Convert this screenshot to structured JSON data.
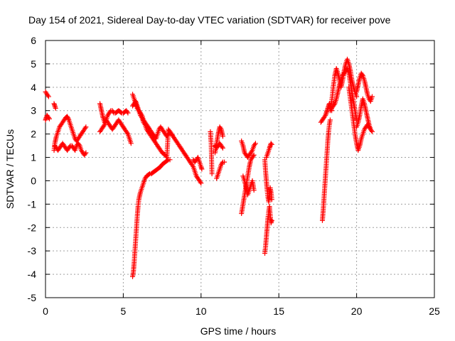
{
  "chart_data": {
    "type": "scatter",
    "title": "Day 154 of 2021, Sidereal Day-to-day VTEC variation (SDTVAR) for receiver pove",
    "xlabel": "GPS time / hours",
    "ylabel": "SDTVAR / TECUs",
    "xlim": [
      0,
      25
    ],
    "ylim": [
      -5,
      6
    ],
    "xticks": [
      0,
      5,
      10,
      15,
      20,
      25
    ],
    "yticks": [
      -5,
      -4,
      -3,
      -2,
      -1,
      0,
      1,
      2,
      3,
      4,
      5,
      6
    ],
    "xtick_labels": [
      "0",
      "5",
      "10",
      "15",
      "20",
      "25"
    ],
    "ytick_labels": [
      "-5",
      "-4",
      "-3",
      "-2",
      "-1",
      "0",
      "1",
      "2",
      "3",
      "4",
      "5",
      "6"
    ],
    "grid": true,
    "marker": "+",
    "marker_color": "#ff0000",
    "series": [
      {
        "name": "SDTVAR",
        "segments": [
          {
            "x": [
              0.0,
              0.05,
              0.1,
              0.15,
              0.2
            ],
            "y": [
              3.8,
              3.75,
              3.7,
              3.65,
              3.6
            ]
          },
          {
            "x": [
              0.0,
              0.05,
              0.1,
              0.15,
              0.2,
              0.25
            ],
            "y": [
              2.6,
              2.7,
              2.8,
              2.75,
              2.7,
              2.65
            ]
          },
          {
            "x": [
              0.55,
              0.6,
              0.65
            ],
            "y": [
              3.3,
              3.2,
              3.1
            ]
          },
          {
            "x": [
              0.55,
              0.6,
              0.7,
              0.8,
              0.9,
              1.0,
              1.1,
              1.2,
              1.3,
              1.4,
              1.5,
              1.6,
              1.7,
              1.8,
              1.9,
              2.0,
              2.1,
              2.2,
              2.3,
              2.4,
              2.5,
              2.6
            ],
            "y": [
              1.3,
              1.6,
              1.9,
              2.1,
              2.3,
              2.4,
              2.5,
              2.6,
              2.7,
              2.75,
              2.6,
              2.4,
              2.2,
              2.0,
              1.8,
              1.7,
              1.8,
              1.9,
              2.0,
              2.1,
              2.2,
              2.3
            ]
          },
          {
            "x": [
              0.6,
              0.7,
              0.8,
              0.9,
              1.0,
              1.1,
              1.2,
              1.3,
              1.4,
              1.5,
              1.6,
              1.7,
              1.8,
              1.9,
              2.0,
              2.1,
              2.2,
              2.3,
              2.4,
              2.5,
              2.6
            ],
            "y": [
              1.5,
              1.4,
              1.3,
              1.4,
              1.5,
              1.6,
              1.5,
              1.4,
              1.3,
              1.4,
              1.5,
              1.5,
              1.4,
              1.3,
              1.5,
              1.6,
              1.5,
              1.3,
              1.2,
              1.1,
              1.2
            ]
          },
          {
            "x": [
              3.5,
              3.6,
              3.7,
              3.8,
              3.9,
              4.0,
              4.1,
              4.2,
              4.3,
              4.4,
              4.5,
              4.6,
              4.7,
              4.8,
              4.9,
              5.0,
              5.1,
              5.2,
              5.3
            ],
            "y": [
              3.3,
              3.0,
              2.7,
              2.5,
              2.6,
              2.8,
              2.9,
              3.0,
              3.0,
              2.9,
              2.9,
              2.95,
              3.0,
              2.95,
              2.9,
              2.9,
              2.95,
              3.0,
              2.9
            ]
          },
          {
            "x": [
              3.5,
              3.6,
              3.7,
              3.8,
              3.9,
              4.0,
              4.1,
              4.2,
              4.3,
              4.4,
              4.5,
              4.6,
              4.7,
              4.8,
              4.9,
              5.0,
              5.1,
              5.2,
              5.3,
              5.4,
              5.5
            ],
            "y": [
              2.1,
              2.2,
              2.3,
              2.4,
              2.6,
              2.5,
              2.4,
              2.3,
              2.2,
              2.3,
              2.4,
              2.5,
              2.6,
              2.5,
              2.4,
              2.3,
              2.2,
              2.1,
              2.0,
              1.8,
              1.6
            ]
          },
          {
            "x": [
              5.6,
              5.7,
              5.8,
              5.9,
              6.0,
              6.1,
              6.2,
              6.3,
              6.4,
              6.5,
              6.6,
              6.7,
              6.8,
              6.9,
              7.0,
              7.1,
              7.2,
              7.3,
              7.4,
              7.5,
              7.6,
              7.7,
              7.8,
              7.9,
              8.0,
              8.1,
              8.2,
              8.3,
              8.4,
              8.5,
              8.6,
              8.7,
              8.8,
              8.9,
              9.0,
              9.1,
              9.2,
              9.3,
              9.4,
              9.5,
              9.6,
              9.7,
              9.8,
              9.9,
              10.0
            ],
            "y": [
              3.7,
              3.5,
              3.3,
              3.1,
              3.0,
              2.8,
              2.7,
              2.5,
              2.4,
              2.2,
              2.1,
              2.0,
              1.9,
              1.8,
              1.7,
              1.6,
              1.5,
              1.4,
              1.3,
              1.2,
              1.15,
              1.1,
              1.0,
              2.2,
              2.1,
              2.0,
              1.9,
              1.8,
              1.7,
              1.6,
              1.5,
              1.4,
              1.3,
              1.2,
              1.1,
              1.0,
              0.9,
              0.8,
              0.7,
              0.6,
              0.4,
              0.2,
              0.1,
              0.0,
              -0.1
            ]
          },
          {
            "x": [
              5.6,
              5.7,
              5.8,
              5.9,
              6.0,
              6.1,
              6.2,
              6.3,
              6.4,
              6.5,
              6.6,
              6.7,
              6.8,
              6.9,
              7.0,
              7.1,
              7.2,
              7.3,
              7.4,
              7.5,
              7.6,
              7.7,
              7.8,
              7.9,
              8.0,
              8.1,
              8.2
            ],
            "y": [
              3.2,
              3.3,
              3.4,
              3.2,
              3.0,
              2.9,
              2.8,
              2.6,
              2.5,
              2.4,
              2.3,
              2.2,
              2.1,
              2.0,
              1.9,
              1.8,
              2.0,
              2.2,
              2.3,
              2.2,
              2.1,
              2.0,
              1.9,
              2.0,
              2.1,
              2.0,
              1.9
            ]
          },
          {
            "x": [
              5.6,
              5.65,
              5.7,
              5.75,
              5.8,
              5.85,
              5.9,
              5.95,
              6.0,
              6.1,
              6.2,
              6.3,
              6.4,
              6.5,
              6.6,
              6.7,
              6.8,
              6.9,
              7.0,
              7.1,
              7.2,
              7.3,
              7.4,
              7.5,
              7.6,
              7.7,
              7.8,
              7.9,
              8.0
            ],
            "y": [
              -4.1,
              -3.9,
              -3.5,
              -3.0,
              -2.5,
              -2.0,
              -1.5,
              -1.1,
              -0.8,
              -0.5,
              -0.3,
              -0.1,
              0.1,
              0.2,
              0.25,
              0.3,
              0.3,
              0.35,
              0.4,
              0.45,
              0.5,
              0.55,
              0.6,
              0.7,
              0.75,
              0.8,
              0.85,
              0.9,
              0.9
            ]
          },
          {
            "x": [
              9.5,
              9.6,
              9.7,
              9.8,
              9.9,
              10.0,
              10.05
            ],
            "y": [
              0.9,
              0.8,
              0.9,
              1.0,
              0.8,
              0.6,
              0.5
            ]
          },
          {
            "x": [
              10.6,
              10.65,
              10.7
            ],
            "y": [
              2.1,
              1.6,
              0.3
            ]
          },
          {
            "x": [
              10.9,
              11.0,
              11.1,
              11.2,
              11.3,
              11.4
            ],
            "y": [
              1.2,
              1.6,
              2.0,
              2.3,
              2.2,
              1.9
            ]
          },
          {
            "x": [
              10.9,
              11.0,
              11.1,
              11.2,
              11.3,
              11.4
            ],
            "y": [
              1.5,
              1.4,
              1.5,
              1.6,
              1.5,
              1.4
            ]
          },
          {
            "x": [
              11.0,
              11.1,
              11.2,
              11.3,
              11.4,
              11.5
            ],
            "y": [
              0.1,
              0.3,
              0.5,
              0.7,
              0.8,
              0.8
            ]
          },
          {
            "x": [
              12.6,
              12.7,
              12.8,
              12.9,
              13.0,
              13.1,
              13.2,
              13.3,
              13.4,
              13.5
            ],
            "y": [
              1.7,
              1.5,
              1.2,
              1.1,
              1.0,
              1.1,
              1.2,
              1.3,
              1.5,
              1.6
            ]
          },
          {
            "x": [
              12.6,
              12.7,
              12.8,
              12.9,
              13.0,
              13.1,
              13.2,
              13.3,
              13.4
            ],
            "y": [
              -1.4,
              -1.0,
              -0.6,
              -0.2,
              0.2,
              0.6,
              0.9,
              1.0,
              1.1
            ]
          },
          {
            "x": [
              12.7,
              12.8,
              12.9,
              13.0,
              13.1,
              13.2,
              13.3,
              13.4
            ],
            "y": [
              0.2,
              0.0,
              -0.3,
              -0.6,
              -0.4,
              -0.2,
              0.0,
              -0.4
            ]
          },
          {
            "x": [
              14.1,
              14.15,
              14.2,
              14.25,
              14.3,
              14.35,
              14.4,
              14.45,
              14.5,
              14.55
            ],
            "y": [
              -3.1,
              -2.8,
              -2.4,
              -2.0,
              -1.6,
              -1.3,
              -1.1,
              -1.5,
              -1.8,
              -1.7
            ]
          },
          {
            "x": [
              14.1,
              14.15,
              14.2,
              14.25,
              14.3,
              14.35,
              14.4,
              14.45,
              14.5,
              14.55
            ],
            "y": [
              0.9,
              0.4,
              0.0,
              -0.4,
              -0.7,
              -0.9,
              -0.6,
              -0.3,
              -0.5,
              -0.8
            ]
          },
          {
            "x": [
              14.2,
              14.3,
              14.4,
              14.45,
              14.5,
              14.55
            ],
            "y": [
              1.0,
              1.2,
              1.4,
              1.5,
              1.6,
              1.55
            ]
          },
          {
            "x": [
              17.7,
              17.8,
              17.9,
              18.0,
              18.05,
              18.1,
              18.15,
              18.2,
              18.25,
              18.3,
              18.35,
              18.4
            ],
            "y": [
              2.5,
              2.6,
              2.7,
              2.8,
              2.9,
              3.0,
              3.1,
              3.2,
              3.3,
              3.2,
              3.1,
              3.0
            ]
          },
          {
            "x": [
              17.8,
              17.85,
              17.9,
              17.95,
              18.0,
              18.05,
              18.1,
              18.15,
              18.2,
              18.25,
              18.3
            ],
            "y": [
              -1.7,
              -1.3,
              -0.8,
              -0.3,
              0.2,
              0.7,
              1.2,
              1.7,
              2.1,
              2.4,
              2.6
            ]
          },
          {
            "x": [
              18.3,
              18.4,
              18.5,
              18.6,
              18.7,
              18.8,
              18.9,
              19.0,
              19.1,
              19.2,
              19.3,
              19.4,
              19.5,
              19.6,
              19.7,
              19.8,
              19.9,
              20.0
            ],
            "y": [
              3.0,
              3.4,
              4.0,
              4.5,
              4.8,
              4.6,
              4.3,
              4.0,
              4.3,
              4.7,
              5.0,
              5.2,
              5.0,
              4.7,
              4.3,
              4.0,
              3.8,
              3.6
            ]
          },
          {
            "x": [
              18.4,
              18.5,
              18.6,
              18.7,
              18.8,
              18.9,
              19.0,
              19.1,
              19.2,
              19.3,
              19.4,
              19.5,
              19.6,
              19.7,
              19.8,
              19.9,
              20.0
            ],
            "y": [
              3.1,
              3.2,
              3.3,
              3.5,
              3.8,
              4.1,
              4.3,
              4.5,
              4.6,
              4.7,
              4.8,
              4.6,
              4.2,
              3.8,
              3.4,
              3.0,
              2.6
            ]
          },
          {
            "x": [
              19.5,
              19.6,
              19.7,
              19.8,
              19.9,
              20.0,
              20.1,
              20.2,
              20.3,
              20.4,
              20.5,
              20.6,
              20.7,
              20.8,
              20.9
            ],
            "y": [
              4.0,
              3.5,
              3.0,
              2.5,
              2.0,
              1.6,
              1.3,
              1.5,
              1.8,
              2.0,
              2.2,
              2.3,
              2.4,
              2.3,
              2.2
            ]
          },
          {
            "x": [
              20.0,
              20.1,
              20.2,
              20.3,
              20.4,
              20.5,
              20.6,
              20.7,
              20.8,
              20.9,
              21.0
            ],
            "y": [
              3.8,
              4.1,
              4.4,
              4.6,
              4.5,
              4.3,
              4.0,
              3.7,
              3.5,
              3.4,
              3.6
            ]
          },
          {
            "x": [
              20.0,
              20.1,
              20.2,
              20.3,
              20.4,
              20.5,
              20.6,
              20.7,
              20.8,
              20.9,
              21.0
            ],
            "y": [
              2.3,
              2.5,
              2.8,
              3.2,
              3.5,
              3.3,
              3.0,
              2.7,
              2.4,
              2.2,
              2.1
            ]
          }
        ]
      }
    ]
  }
}
